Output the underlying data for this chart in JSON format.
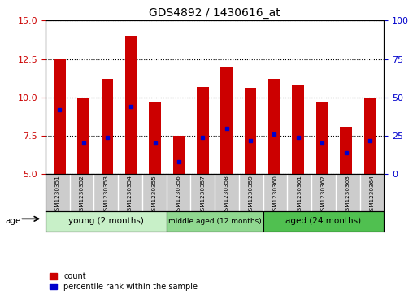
{
  "title": "GDS4892 / 1430616_at",
  "samples": [
    "GSM1230351",
    "GSM1230352",
    "GSM1230353",
    "GSM1230354",
    "GSM1230355",
    "GSM1230356",
    "GSM1230357",
    "GSM1230358",
    "GSM1230359",
    "GSM1230360",
    "GSM1230361",
    "GSM1230362",
    "GSM1230363",
    "GSM1230364"
  ],
  "count_values": [
    12.5,
    10.0,
    11.2,
    14.0,
    9.7,
    7.5,
    10.7,
    12.0,
    10.6,
    11.2,
    10.8,
    9.7,
    8.1,
    10.0
  ],
  "count_base": 5.0,
  "percentile_values": [
    42,
    20,
    24,
    44,
    20,
    8,
    24,
    30,
    22,
    26,
    24,
    20,
    14,
    22
  ],
  "ylim_left": [
    5,
    15
  ],
  "ylim_right": [
    0,
    100
  ],
  "yticks_left": [
    5,
    7.5,
    10,
    12.5,
    15
  ],
  "yticks_right": [
    0,
    25,
    50,
    75,
    100
  ],
  "groups": [
    {
      "label": "young (2 months)",
      "start": 0,
      "end": 5,
      "color": "#c8f0c8"
    },
    {
      "label": "middle aged (12 months)",
      "start": 5,
      "end": 9,
      "color": "#90d890"
    },
    {
      "label": "aged (24 months)",
      "start": 9,
      "end": 14,
      "color": "#50c050"
    }
  ],
  "bar_color": "#cc0000",
  "percentile_color": "#0000cc",
  "bar_width": 0.5,
  "age_label": "age",
  "legend_count": "count",
  "legend_percentile": "percentile rank within the sample",
  "tick_color_left": "#cc0000",
  "tick_color_right": "#0000cc"
}
